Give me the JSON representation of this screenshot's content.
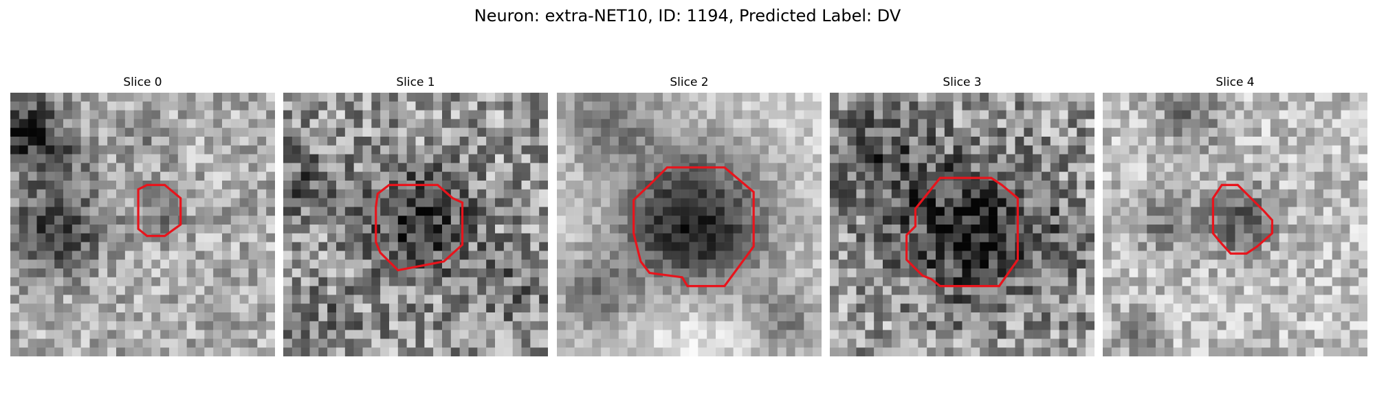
{
  "figure": {
    "title": "Neuron: extra-NET10, ID: 1194, Predicted Label: DV"
  },
  "colors": {
    "contour": "#e8141c",
    "background": "#ffffff"
  },
  "panels": [
    {
      "title": "Slice 0"
    },
    {
      "title": "Slice 1"
    },
    {
      "title": "Slice 2"
    },
    {
      "title": "Slice 3"
    },
    {
      "title": "Slice 4"
    }
  ]
}
